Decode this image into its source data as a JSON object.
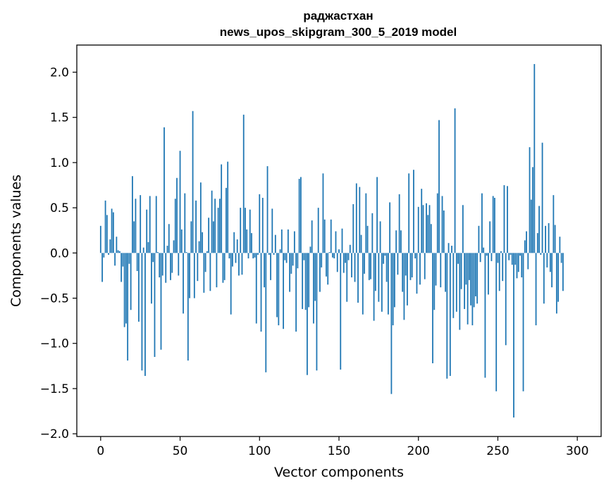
{
  "chart_data": {
    "type": "bar",
    "title": "раджастхан",
    "subtitle": "news_upos_skipgram_300_5_2019 model",
    "xlabel": "Vector components",
    "ylabel": "Components values",
    "xlim": [
      -15,
      315
    ],
    "ylim": [
      -2.03,
      2.3
    ],
    "xticks": [
      0,
      50,
      100,
      150,
      200,
      250,
      300
    ],
    "yticks": [
      -2.0,
      -1.5,
      -1.0,
      -0.5,
      0.0,
      0.5,
      1.0,
      1.5,
      2.0
    ],
    "ytick_labels": [
      "−2.0",
      "−1.5",
      "−1.0",
      "−0.5",
      "0.0",
      "0.5",
      "1.0",
      "1.5",
      "2.0"
    ],
    "color": "#1f77b4",
    "values": [
      0.3,
      -0.32,
      -0.05,
      0.58,
      0.42,
      -0.02,
      0.15,
      0.49,
      0.45,
      -0.14,
      0.18,
      0.03,
      0.02,
      -0.32,
      -0.15,
      -0.82,
      -0.78,
      -1.19,
      -0.12,
      -0.63,
      0.85,
      0.35,
      0.6,
      -0.2,
      -0.76,
      0.64,
      -1.3,
      0.06,
      -1.36,
      0.48,
      0.12,
      0.63,
      -0.56,
      -0.1,
      -1.15,
      0.63,
      0.01,
      -0.27,
      -1.07,
      -0.25,
      1.39,
      -0.33,
      0.08,
      0.32,
      -0.3,
      -0.22,
      0.14,
      0.6,
      0.83,
      -0.25,
      1.13,
      0.26,
      -0.67,
      0.66,
      0.01,
      -1.19,
      -0.5,
      0.35,
      1.57,
      -0.5,
      0.58,
      -0.31,
      0.13,
      0.78,
      0.23,
      -0.44,
      -0.21,
      0.02,
      0.39,
      -0.42,
      0.69,
      0.35,
      0.6,
      -0.38,
      0.5,
      0.6,
      0.98,
      -0.33,
      -0.3,
      0.72,
      1.01,
      -0.06,
      -0.68,
      -0.15,
      0.23,
      -0.11,
      0.15,
      -0.25,
      0.5,
      -0.24,
      1.53,
      0.5,
      0.26,
      -0.06,
      0.48,
      0.22,
      -0.06,
      -0.05,
      -0.78,
      -0.02,
      0.65,
      -0.87,
      0.61,
      -0.38,
      -1.32,
      0.96,
      -0.02,
      -0.3,
      0.49,
      -0.02,
      0.2,
      -0.71,
      -0.8,
      0.04,
      0.26,
      -0.84,
      -0.08,
      -0.11,
      0.26,
      -0.43,
      -0.23,
      -0.14,
      0.24,
      -0.87,
      -0.17,
      0.82,
      0.84,
      -0.62,
      -0.08,
      -0.63,
      -1.35,
      -0.6,
      0.07,
      0.36,
      -0.78,
      -0.53,
      -1.3,
      0.5,
      -0.43,
      -0.16,
      0.88,
      0.37,
      -0.26,
      -0.35,
      0.01,
      0.37,
      -0.05,
      -0.06,
      0.24,
      -0.21,
      0.04,
      -1.29,
      0.27,
      -0.22,
      -0.11,
      -0.54,
      -0.08,
      0.09,
      -0.27,
      0.54,
      -0.32,
      0.77,
      -0.55,
      0.73,
      0.2,
      -0.68,
      -0.23,
      0.66,
      0.3,
      -0.3,
      -0.29,
      0.44,
      -0.75,
      -0.42,
      0.84,
      -0.54,
      0.35,
      -0.65,
      -0.12,
      -0.03,
      -0.32,
      -0.68,
      0.56,
      -1.56,
      -0.8,
      -0.6,
      0.25,
      -0.24,
      0.65,
      0.25,
      -0.43,
      -0.74,
      -0.25,
      -0.58,
      0.88,
      -0.3,
      -0.27,
      0.92,
      -0.06,
      -0.45,
      0.51,
      -0.35,
      0.71,
      0.53,
      -0.29,
      0.55,
      0.42,
      0.53,
      0.32,
      -1.22,
      -0.63,
      -0.36,
      0.66,
      1.47,
      -0.38,
      0.63,
      0.47,
      -0.43,
      -1.39,
      0.11,
      -1.36,
      0.08,
      -0.72,
      1.6,
      -0.65,
      -0.12,
      -0.85,
      -0.4,
      0.53,
      -0.62,
      -0.35,
      -0.79,
      -0.3,
      -0.58,
      -0.8,
      -0.6,
      -0.48,
      -0.56,
      0.3,
      -0.1,
      0.66,
      0.06,
      -1.38,
      -0.03,
      -0.46,
      0.35,
      -0.09,
      0.63,
      0.61,
      -1.53,
      -0.11,
      -0.42,
      0.02,
      -0.31,
      0.75,
      -1.02,
      0.74,
      -0.08,
      -0.02,
      -0.13,
      -1.82,
      -0.13,
      -0.28,
      -0.21,
      -0.03,
      -0.27,
      -1.53,
      0.14,
      0.24,
      -0.18,
      1.17,
      0.59,
      0.95,
      2.09,
      -0.8,
      0.22,
      0.52,
      -0.02,
      1.22,
      -0.56,
      0.3,
      -0.16,
      0.33,
      -0.21,
      -0.38,
      0.64,
      0.31,
      -0.67,
      -0.54,
      0.18,
      -0.11,
      -0.42
    ]
  }
}
